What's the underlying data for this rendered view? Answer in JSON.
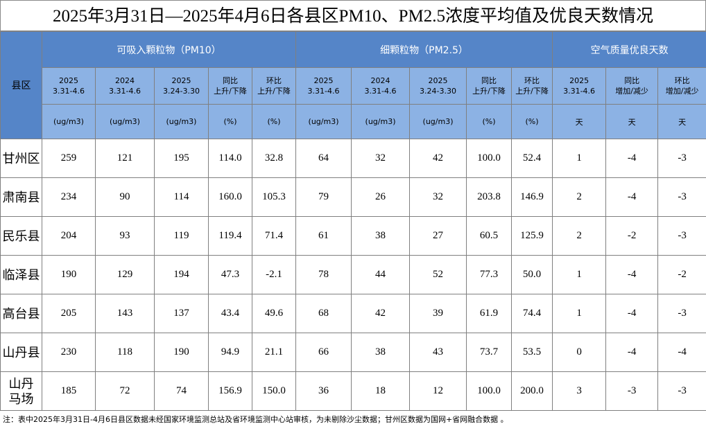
{
  "title": "2025年3月31日—2025年4月6日各县区PM10、PM2.5浓度平均值及优良天数情况",
  "county_header": "县区",
  "groups": [
    "可吸入颗粒物（PM10）",
    "细颗粒物（PM2.5）",
    "空气质量优良天数"
  ],
  "subheaders": [
    [
      "2025",
      "3.31-4.6"
    ],
    [
      "2024",
      "3.31-4.6"
    ],
    [
      "2025",
      "3.24-3.30"
    ],
    [
      "同比",
      "上升/下降"
    ],
    [
      "环比",
      "上升/下降"
    ],
    [
      "2025",
      "3.31-4.6"
    ],
    [
      "2024",
      "3.31-4.6"
    ],
    [
      "2025",
      "3.24-3.30"
    ],
    [
      "同比",
      "上升/下降"
    ],
    [
      "环比",
      "上升/下降"
    ],
    [
      "2025",
      "3.31-4.6"
    ],
    [
      "同比",
      "增加/减少"
    ],
    [
      "环比",
      "增加/减少"
    ]
  ],
  "units": [
    "(ug/m3)",
    "(ug/m3)",
    "(ug/m3)",
    "(%)",
    "(%)",
    "(ug/m3)",
    "(ug/m3)",
    "(ug/m3)",
    "(%)",
    "(%)",
    "天",
    "天",
    "天"
  ],
  "rows": [
    {
      "name": [
        "甘州区"
      ],
      "values": [
        "259",
        "121",
        "195",
        "114.0",
        "32.8",
        "64",
        "32",
        "42",
        "100.0",
        "52.4",
        "1",
        "-4",
        "-3"
      ]
    },
    {
      "name": [
        "肃南县"
      ],
      "values": [
        "234",
        "90",
        "114",
        "160.0",
        "105.3",
        "79",
        "26",
        "32",
        "203.8",
        "146.9",
        "2",
        "-4",
        "-3"
      ]
    },
    {
      "name": [
        "民乐县"
      ],
      "values": [
        "204",
        "93",
        "119",
        "119.4",
        "71.4",
        "61",
        "38",
        "27",
        "60.5",
        "125.9",
        "2",
        "-2",
        "-3"
      ]
    },
    {
      "name": [
        "临泽县"
      ],
      "values": [
        "190",
        "129",
        "194",
        "47.3",
        "-2.1",
        "78",
        "44",
        "52",
        "77.3",
        "50.0",
        "1",
        "-4",
        "-2"
      ]
    },
    {
      "name": [
        "高台县"
      ],
      "values": [
        "205",
        "143",
        "137",
        "43.4",
        "49.6",
        "68",
        "42",
        "39",
        "61.9",
        "74.4",
        "1",
        "-4",
        "-3"
      ]
    },
    {
      "name": [
        "山丹县"
      ],
      "values": [
        "230",
        "118",
        "190",
        "94.9",
        "21.1",
        "66",
        "38",
        "43",
        "73.7",
        "53.5",
        "0",
        "-4",
        "-4"
      ]
    },
    {
      "name": [
        "山丹",
        "马场"
      ],
      "values": [
        "185",
        "72",
        "74",
        "156.9",
        "150.0",
        "36",
        "18",
        "12",
        "100.0",
        "200.0",
        "3",
        "-3",
        "-3"
      ]
    }
  ],
  "note": "注：表中2025年3月31日-4月6日县区数据未经国家环境监测总站及省环境监测中心站审核，为未剔除沙尘数据；甘州区数据为国网+省网融合数据 。"
}
